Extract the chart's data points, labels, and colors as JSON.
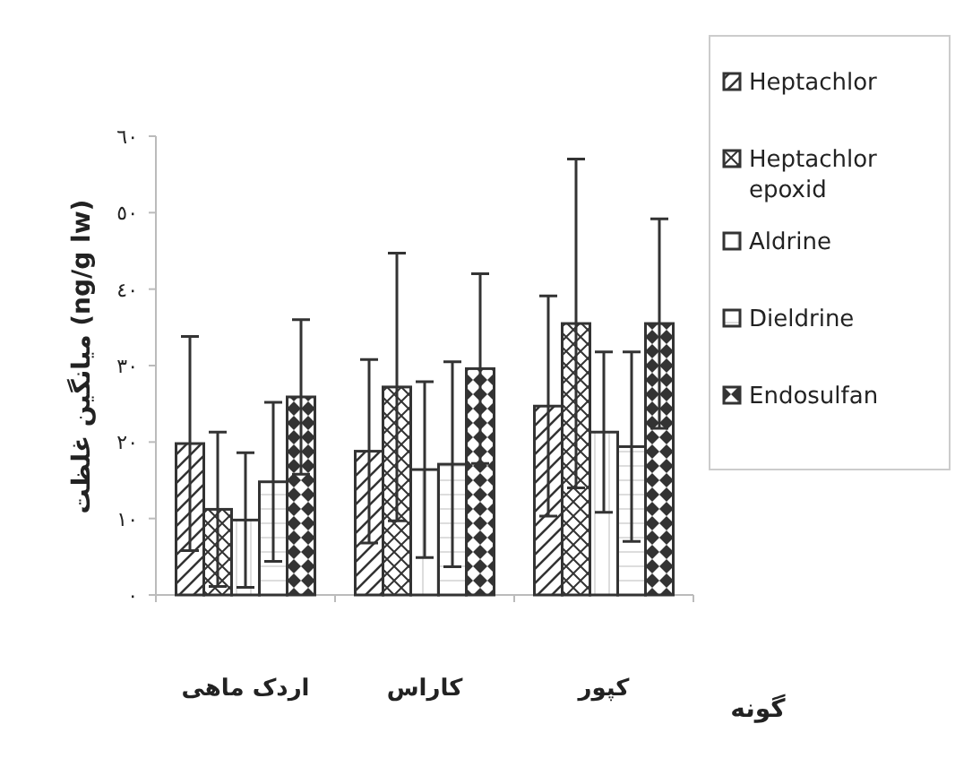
{
  "chart_data": {
    "type": "bar",
    "ylabel": "میانگین غلظت (ng/g lw)",
    "xlabel": "گونه",
    "categories": [
      "اردک ماهی",
      "کاراس",
      "کپور"
    ],
    "series": [
      {
        "name": "Heptachlor",
        "color": "#333333",
        "values": [
          19.8,
          18.8,
          24.7
        ],
        "errors": [
          14,
          12,
          14.4
        ]
      },
      {
        "name": "Heptachlor epoxid",
        "color": "#333333",
        "values": [
          11.2,
          27.2,
          35.5
        ],
        "errors": [
          10.1,
          17.5,
          21.5
        ]
      },
      {
        "name": "Aldrine",
        "color": "#333333",
        "values": [
          9.8,
          16.4,
          21.3
        ],
        "errors": [
          8.8,
          11.5,
          10.5
        ]
      },
      {
        "name": "Dieldrine",
        "color": "#333333",
        "values": [
          14.8,
          17.1,
          19.4
        ],
        "errors": [
          10.4,
          13.4,
          12.4
        ]
      },
      {
        "name": "Endosulfan",
        "color": "#333333",
        "values": [
          25.9,
          29.6,
          35.5
        ],
        "errors": [
          10.1,
          12.4,
          13.7
        ]
      }
    ],
    "ylim": [
      0,
      60
    ],
    "yticks": [
      {
        "value": 0,
        "label": "٠"
      },
      {
        "value": 10,
        "label": "١٠"
      },
      {
        "value": 20,
        "label": "٢٠"
      },
      {
        "value": 30,
        "label": "٣٠"
      },
      {
        "value": 40,
        "label": "٤٠"
      },
      {
        "value": 50,
        "label": "٥٠"
      },
      {
        "value": 60,
        "label": "٦٠"
      }
    ],
    "legend": "right",
    "grid": false
  }
}
